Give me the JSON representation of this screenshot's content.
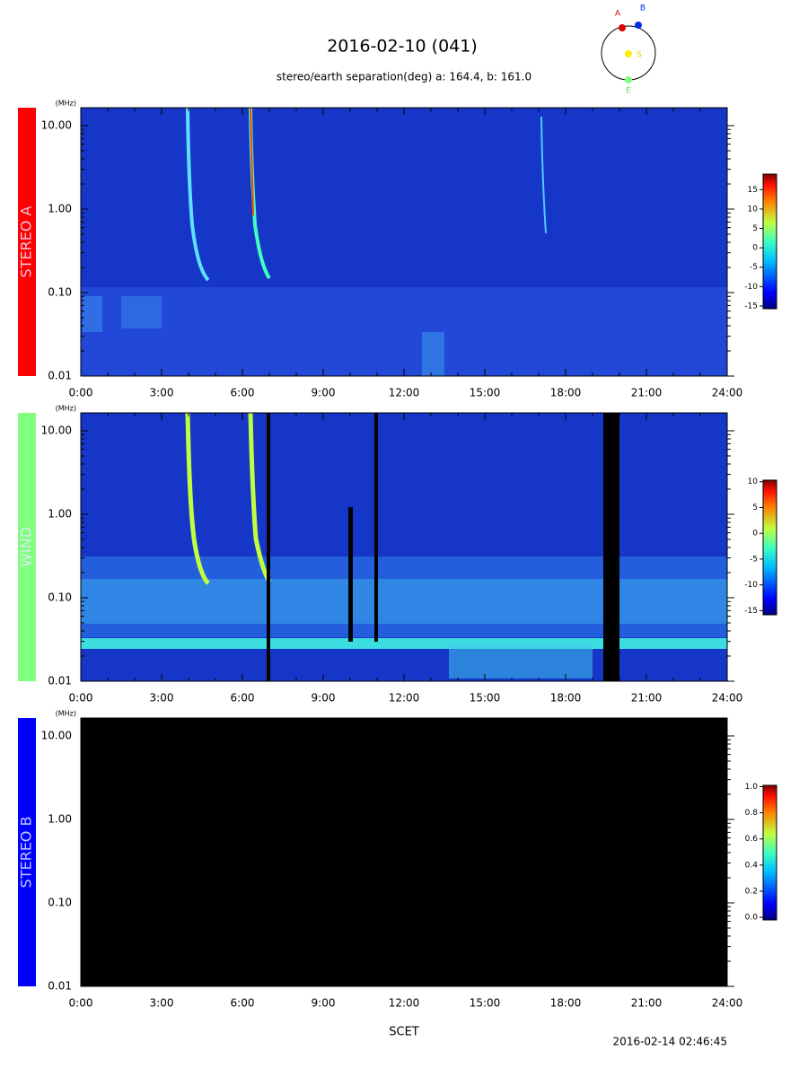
{
  "title": "2016-02-10 (041)",
  "subtitle": "stereo/earth separation(deg) a: 164.4, b: 161.0",
  "x_label": "SCET",
  "timestamp": "2016-02-14 02:46:45",
  "orbit": {
    "a": "A",
    "b": "B",
    "s": "S",
    "e": "E"
  },
  "chart_data": [
    {
      "type": "spectrogram",
      "label": "STEREO A",
      "label_color": "#ff0000",
      "y_unit": "(MHz)",
      "log_y": true,
      "background": "#1636c8",
      "xlim": [
        0,
        1440
      ],
      "xticks": [
        {
          "value": 0,
          "label": "0:00"
        },
        {
          "value": 180,
          "label": "3:00"
        },
        {
          "value": 360,
          "label": "6:00"
        },
        {
          "value": 540,
          "label": "9:00"
        },
        {
          "value": 720,
          "label": "12:00"
        },
        {
          "value": 900,
          "label": "15:00"
        },
        {
          "value": 1080,
          "label": "18:00"
        },
        {
          "value": 1260,
          "label": "21:00"
        },
        {
          "value": 1440,
          "label": "24:00"
        }
      ],
      "ylim": [
        0.01,
        16.4
      ],
      "yticks": [
        0.01,
        {
          "value": 0.1,
          "label": "0.10"
        },
        {
          "value": 1,
          "label": "1.00"
        },
        {
          "value": 10,
          "label": "10.00"
        }
      ],
      "colorbar": {
        "lim": [
          -15.7,
          19
        ],
        "ticks": [
          15,
          10,
          5,
          0,
          -5,
          -10,
          -15
        ]
      }
    },
    {
      "type": "spectrogram",
      "label": "WIND",
      "label_color": "#80ff80",
      "y_unit": "(MHz)",
      "log_y": true,
      "background": "#1636c8",
      "xlim": [
        0,
        1440
      ],
      "xticks": [
        {
          "value": 0,
          "label": "0:00"
        },
        {
          "value": 180,
          "label": "3:00"
        },
        {
          "value": 360,
          "label": "6:00"
        },
        {
          "value": 540,
          "label": "9:00"
        },
        {
          "value": 720,
          "label": "12:00"
        },
        {
          "value": 900,
          "label": "15:00"
        },
        {
          "value": 1080,
          "label": "18:00"
        },
        {
          "value": 1260,
          "label": "21:00"
        },
        {
          "value": 1440,
          "label": "24:00"
        }
      ],
      "ylim": [
        0.01,
        16.4
      ],
      "yticks": [
        0.01,
        {
          "value": 0.1,
          "label": "0.10"
        },
        {
          "value": 1,
          "label": "1.00"
        },
        {
          "value": 10,
          "label": "10.00"
        }
      ],
      "colorbar": {
        "lim": [
          -15.8,
          10.3
        ],
        "ticks": [
          10,
          5,
          0,
          -5,
          -10,
          -15
        ]
      }
    },
    {
      "type": "spectrogram",
      "label": "STEREO B",
      "label_color": "#0000ff",
      "y_unit": "(MHz)",
      "log_y": true,
      "background": "#000000",
      "xlim": [
        0,
        1440
      ],
      "xticks": [
        {
          "value": 0,
          "label": "0:00"
        },
        {
          "value": 180,
          "label": "3:00"
        },
        {
          "value": 360,
          "label": "6:00"
        },
        {
          "value": 540,
          "label": "9:00"
        },
        {
          "value": 720,
          "label": "12:00"
        },
        {
          "value": 900,
          "label": "15:00"
        },
        {
          "value": 1080,
          "label": "18:00"
        },
        {
          "value": 1260,
          "label": "21:00"
        },
        {
          "value": 1440,
          "label": "24:00"
        }
      ],
      "ylim": [
        0.01,
        16.4
      ],
      "yticks": [
        0.01,
        {
          "value": 0.1,
          "label": "0.10"
        },
        {
          "value": 1,
          "label": "1.00"
        },
        {
          "value": 10,
          "label": "10.00"
        }
      ],
      "colorbar": {
        "lim": [
          -0.02,
          1.01
        ],
        "ticks": [
          {
            "value": 0,
            "label": "0.0"
          },
          {
            "value": 0.2,
            "label": "0.2"
          },
          {
            "value": 0.4,
            "label": "0.4"
          },
          {
            "value": 0.6,
            "label": "0.6"
          },
          {
            "value": 0.8,
            "label": "0.8"
          },
          {
            "value": 1,
            "label": "1.0"
          }
        ]
      }
    }
  ]
}
